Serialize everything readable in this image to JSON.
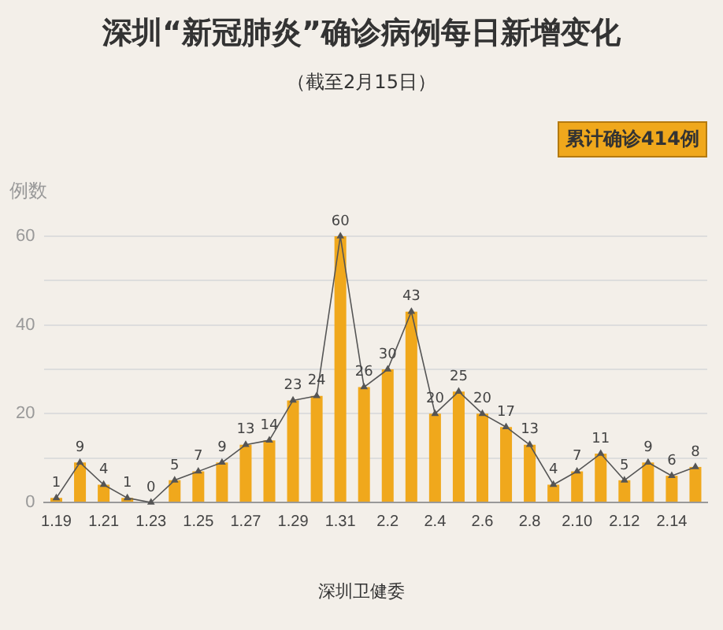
{
  "chart_data": {
    "type": "bar",
    "title": "深圳“新冠肺炎”确诊病例每日新增变化",
    "subtitle": "（截至2月15日）",
    "ylabel": "例数",
    "categories": [
      "1.19",
      null,
      "1.21",
      null,
      "1.23",
      null,
      "1.25",
      null,
      "1.27",
      null,
      "1.29",
      null,
      "1.31",
      null,
      "2.2",
      null,
      "2.4",
      null,
      "2.6",
      null,
      "2.8",
      null,
      "2.10",
      null,
      "2.12",
      null,
      "2.14",
      null
    ],
    "series": [
      {
        "color": "#f0a81c",
        "values": [
          1,
          9,
          4,
          1,
          0,
          5,
          7,
          9,
          13,
          14,
          23,
          24,
          60,
          26,
          30,
          43,
          20,
          25,
          20,
          17,
          13,
          4,
          7,
          11,
          5,
          9,
          6,
          8
        ]
      },
      {
        "type": "line",
        "color": "#555555",
        "values": [
          1,
          9,
          4,
          1,
          0,
          5,
          7,
          9,
          13,
          14,
          23,
          24,
          60,
          26,
          30,
          43,
          20,
          25,
          20,
          17,
          13,
          4,
          7,
          11,
          5,
          9,
          6,
          8
        ],
        "value_labels": [
          "1",
          "9",
          "4",
          "1",
          "0",
          "5",
          "7",
          "9",
          "13",
          "14",
          "23",
          "24",
          "60",
          "26",
          "30",
          "43",
          "20",
          "25",
          "20",
          "17",
          "13",
          "4",
          "7",
          "11",
          "5",
          "9",
          "6",
          "8"
        ]
      }
    ],
    "ylim": [
      0,
      60
    ],
    "yticks": [
      0,
      {
        "value": 10,
        "label": null
      },
      20,
      {
        "value": 30,
        "label": null
      },
      40,
      {
        "value": 50,
        "label": null
      },
      60
    ],
    "grid": "y",
    "legend": false,
    "marker": "triangle",
    "annotations": [
      "累计确诊414例",
      "深圳卫健委"
    ]
  }
}
